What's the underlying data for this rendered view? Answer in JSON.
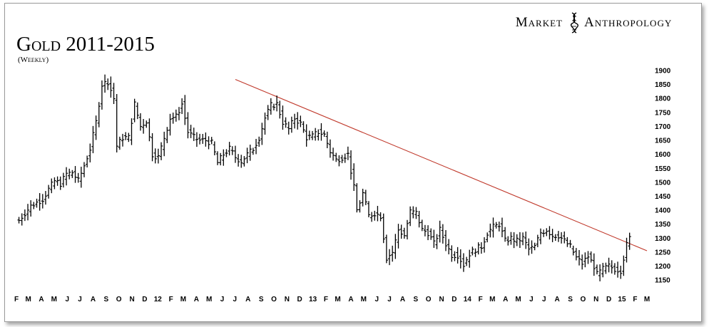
{
  "brand": {
    "left": "Market",
    "right": "Anthropology",
    "logo_icon": "dna-helix-icon"
  },
  "chart_data": {
    "type": "ohlc",
    "title": "Gold 2011-2015",
    "subtitle": "(Weekly)",
    "xlabel": "",
    "ylabel": "",
    "ylim": [
      1120,
      1910
    ],
    "yticks": [
      1150,
      1200,
      1250,
      1300,
      1350,
      1400,
      1450,
      1500,
      1550,
      1600,
      1650,
      1700,
      1750,
      1800,
      1850,
      1900
    ],
    "xlim": [
      "2011-02-01",
      "2015-03-01"
    ],
    "month_ticks": [
      {
        "label": "F",
        "date": "2011-02-01"
      },
      {
        "label": "M",
        "date": "2011-03-01"
      },
      {
        "label": "A",
        "date": "2011-04-01"
      },
      {
        "label": "M",
        "date": "2011-05-01"
      },
      {
        "label": "J",
        "date": "2011-06-01"
      },
      {
        "label": "J",
        "date": "2011-07-01"
      },
      {
        "label": "A",
        "date": "2011-08-01"
      },
      {
        "label": "S",
        "date": "2011-09-01"
      },
      {
        "label": "O",
        "date": "2011-10-01"
      },
      {
        "label": "N",
        "date": "2011-11-01"
      },
      {
        "label": "D",
        "date": "2011-12-01"
      },
      {
        "label": "12",
        "date": "2012-01-01"
      },
      {
        "label": "F",
        "date": "2012-02-01"
      },
      {
        "label": "M",
        "date": "2012-03-01"
      },
      {
        "label": "A",
        "date": "2012-04-01"
      },
      {
        "label": "M",
        "date": "2012-05-01"
      },
      {
        "label": "J",
        "date": "2012-06-01"
      },
      {
        "label": "J",
        "date": "2012-07-01"
      },
      {
        "label": "A",
        "date": "2012-08-01"
      },
      {
        "label": "S",
        "date": "2012-09-01"
      },
      {
        "label": "O",
        "date": "2012-10-01"
      },
      {
        "label": "N",
        "date": "2012-11-01"
      },
      {
        "label": "D",
        "date": "2012-12-01"
      },
      {
        "label": "13",
        "date": "2013-01-01"
      },
      {
        "label": "F",
        "date": "2013-02-01"
      },
      {
        "label": "M",
        "date": "2013-03-01"
      },
      {
        "label": "A",
        "date": "2013-04-01"
      },
      {
        "label": "M",
        "date": "2013-05-01"
      },
      {
        "label": "J",
        "date": "2013-06-01"
      },
      {
        "label": "J",
        "date": "2013-07-01"
      },
      {
        "label": "A",
        "date": "2013-08-01"
      },
      {
        "label": "S",
        "date": "2013-09-01"
      },
      {
        "label": "O",
        "date": "2013-10-01"
      },
      {
        "label": "N",
        "date": "2013-11-01"
      },
      {
        "label": "D",
        "date": "2013-12-01"
      },
      {
        "label": "14",
        "date": "2014-01-01"
      },
      {
        "label": "F",
        "date": "2014-02-01"
      },
      {
        "label": "M",
        "date": "2014-03-01"
      },
      {
        "label": "A",
        "date": "2014-04-01"
      },
      {
        "label": "M",
        "date": "2014-05-01"
      },
      {
        "label": "J",
        "date": "2014-06-01"
      },
      {
        "label": "J",
        "date": "2014-07-01"
      },
      {
        "label": "A",
        "date": "2014-08-01"
      },
      {
        "label": "S",
        "date": "2014-09-01"
      },
      {
        "label": "O",
        "date": "2014-10-01"
      },
      {
        "label": "N",
        "date": "2014-11-01"
      },
      {
        "label": "D",
        "date": "2014-12-01"
      },
      {
        "label": "15",
        "date": "2015-01-01"
      },
      {
        "label": "F",
        "date": "2015-02-01"
      },
      {
        "label": "M",
        "date": "2015-03-01"
      }
    ],
    "series": [
      {
        "points": [
          {
            "x": "2011-02-07",
            "y": 1364
          },
          {
            "x": "2011-02-21",
            "y": 1390
          },
          {
            "x": "2011-03-07",
            "y": 1415
          },
          {
            "x": "2011-03-21",
            "y": 1428
          },
          {
            "x": "2011-04-04",
            "y": 1440
          },
          {
            "x": "2011-04-18",
            "y": 1475
          },
          {
            "x": "2011-05-02",
            "y": 1505
          },
          {
            "x": "2011-05-16",
            "y": 1495
          },
          {
            "x": "2011-05-30",
            "y": 1530
          },
          {
            "x": "2011-06-13",
            "y": 1535
          },
          {
            "x": "2011-06-27",
            "y": 1505
          },
          {
            "x": "2011-07-11",
            "y": 1560
          },
          {
            "x": "2011-07-25",
            "y": 1620
          },
          {
            "x": "2011-08-08",
            "y": 1715
          },
          {
            "x": "2011-08-22",
            "y": 1850
          },
          {
            "x": "2011-09-05",
            "y": 1860
          },
          {
            "x": "2011-09-19",
            "y": 1800
          },
          {
            "x": "2011-09-26",
            "y": 1630
          },
          {
            "x": "2011-10-10",
            "y": 1660
          },
          {
            "x": "2011-10-24",
            "y": 1660
          },
          {
            "x": "2011-11-07",
            "y": 1780
          },
          {
            "x": "2011-11-21",
            "y": 1700
          },
          {
            "x": "2011-12-05",
            "y": 1720
          },
          {
            "x": "2011-12-19",
            "y": 1600
          },
          {
            "x": "2012-01-02",
            "y": 1590
          },
          {
            "x": "2012-01-16",
            "y": 1660
          },
          {
            "x": "2012-01-30",
            "y": 1730
          },
          {
            "x": "2012-02-13",
            "y": 1735
          },
          {
            "x": "2012-02-27",
            "y": 1780
          },
          {
            "x": "2012-03-12",
            "y": 1680
          },
          {
            "x": "2012-03-26",
            "y": 1660
          },
          {
            "x": "2012-04-09",
            "y": 1650
          },
          {
            "x": "2012-04-23",
            "y": 1650
          },
          {
            "x": "2012-05-07",
            "y": 1640
          },
          {
            "x": "2012-05-21",
            "y": 1570
          },
          {
            "x": "2012-06-04",
            "y": 1600
          },
          {
            "x": "2012-06-18",
            "y": 1620
          },
          {
            "x": "2012-07-02",
            "y": 1590
          },
          {
            "x": "2012-07-16",
            "y": 1575
          },
          {
            "x": "2012-07-30",
            "y": 1600
          },
          {
            "x": "2012-08-13",
            "y": 1620
          },
          {
            "x": "2012-08-27",
            "y": 1660
          },
          {
            "x": "2012-09-10",
            "y": 1730
          },
          {
            "x": "2012-09-24",
            "y": 1775
          },
          {
            "x": "2012-10-08",
            "y": 1780
          },
          {
            "x": "2012-10-22",
            "y": 1715
          },
          {
            "x": "2012-11-05",
            "y": 1690
          },
          {
            "x": "2012-11-19",
            "y": 1730
          },
          {
            "x": "2012-12-03",
            "y": 1710
          },
          {
            "x": "2012-12-17",
            "y": 1660
          },
          {
            "x": "2012-12-31",
            "y": 1665
          },
          {
            "x": "2013-01-14",
            "y": 1680
          },
          {
            "x": "2013-01-28",
            "y": 1670
          },
          {
            "x": "2013-02-11",
            "y": 1610
          },
          {
            "x": "2013-02-25",
            "y": 1580
          },
          {
            "x": "2013-03-11",
            "y": 1590
          },
          {
            "x": "2013-03-25",
            "y": 1600
          },
          {
            "x": "2013-04-08",
            "y": 1480
          },
          {
            "x": "2013-04-15",
            "y": 1400
          },
          {
            "x": "2013-04-29",
            "y": 1460
          },
          {
            "x": "2013-05-13",
            "y": 1380
          },
          {
            "x": "2013-05-27",
            "y": 1390
          },
          {
            "x": "2013-06-10",
            "y": 1380
          },
          {
            "x": "2013-06-24",
            "y": 1230
          },
          {
            "x": "2013-07-08",
            "y": 1250
          },
          {
            "x": "2013-07-22",
            "y": 1330
          },
          {
            "x": "2013-08-05",
            "y": 1310
          },
          {
            "x": "2013-08-19",
            "y": 1395
          },
          {
            "x": "2013-09-02",
            "y": 1390
          },
          {
            "x": "2013-09-16",
            "y": 1330
          },
          {
            "x": "2013-09-30",
            "y": 1320
          },
          {
            "x": "2013-10-14",
            "y": 1280
          },
          {
            "x": "2013-10-28",
            "y": 1330
          },
          {
            "x": "2013-11-11",
            "y": 1280
          },
          {
            "x": "2013-11-25",
            "y": 1240
          },
          {
            "x": "2013-12-09",
            "y": 1240
          },
          {
            "x": "2013-12-23",
            "y": 1205
          },
          {
            "x": "2014-01-06",
            "y": 1245
          },
          {
            "x": "2014-01-20",
            "y": 1260
          },
          {
            "x": "2014-02-03",
            "y": 1270
          },
          {
            "x": "2014-02-17",
            "y": 1320
          },
          {
            "x": "2014-03-03",
            "y": 1340
          },
          {
            "x": "2014-03-17",
            "y": 1350
          },
          {
            "x": "2014-03-31",
            "y": 1290
          },
          {
            "x": "2014-04-14",
            "y": 1300
          },
          {
            "x": "2014-04-28",
            "y": 1290
          },
          {
            "x": "2014-05-12",
            "y": 1300
          },
          {
            "x": "2014-05-26",
            "y": 1260
          },
          {
            "x": "2014-06-09",
            "y": 1270
          },
          {
            "x": "2014-06-23",
            "y": 1320
          },
          {
            "x": "2014-07-07",
            "y": 1330
          },
          {
            "x": "2014-07-21",
            "y": 1310
          },
          {
            "x": "2014-08-04",
            "y": 1310
          },
          {
            "x": "2014-08-18",
            "y": 1290
          },
          {
            "x": "2014-09-01",
            "y": 1270
          },
          {
            "x": "2014-09-15",
            "y": 1230
          },
          {
            "x": "2014-09-29",
            "y": 1210
          },
          {
            "x": "2014-10-13",
            "y": 1235
          },
          {
            "x": "2014-10-27",
            "y": 1200
          },
          {
            "x": "2014-11-03",
            "y": 1170
          },
          {
            "x": "2014-11-17",
            "y": 1190
          },
          {
            "x": "2014-12-01",
            "y": 1200
          },
          {
            "x": "2014-12-15",
            "y": 1190
          },
          {
            "x": "2014-12-29",
            "y": 1185
          },
          {
            "x": "2015-01-12",
            "y": 1275
          },
          {
            "x": "2015-01-19",
            "y": 1300
          }
        ]
      }
    ],
    "trendline": {
      "color": "#c0392b",
      "points": [
        {
          "x": "2012-07-02",
          "y": 1868
        },
        {
          "x": "2015-03-01",
          "y": 1255
        }
      ]
    },
    "grid": false,
    "legend": "none",
    "colors": {
      "bars": "#000000",
      "trendline": "#c0392b",
      "frame": "#9a9a9a"
    }
  }
}
